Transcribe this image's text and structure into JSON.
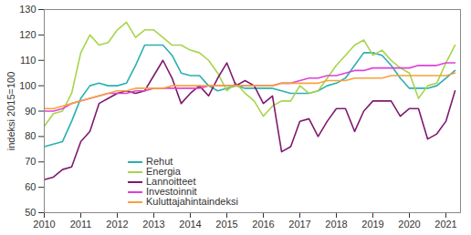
{
  "chart_data": {
    "type": "line",
    "y_label": "indeksi 2015=100",
    "x": [
      2010,
      2010.25,
      2010.5,
      2010.75,
      2011,
      2011.25,
      2011.5,
      2011.75,
      2012,
      2012.25,
      2012.5,
      2012.75,
      2013,
      2013.25,
      2013.5,
      2013.75,
      2014,
      2014.25,
      2014.5,
      2014.75,
      2015,
      2015.25,
      2015.5,
      2015.75,
      2016,
      2016.25,
      2016.5,
      2016.75,
      2017,
      2017.25,
      2017.5,
      2017.75,
      2018,
      2018.25,
      2018.5,
      2018.75,
      2019,
      2019.25,
      2019.5,
      2019.75,
      2020,
      2020.25,
      2020.5,
      2020.75,
      2021,
      2021.25
    ],
    "series": [
      {
        "name": "Rehut",
        "color": "#2ab0b0",
        "values": [
          76,
          77,
          78,
          86,
          95,
          100,
          101,
          100,
          100,
          101,
          108,
          116,
          116,
          116,
          112,
          105,
          104,
          104,
          100,
          98,
          99,
          100,
          99,
          99,
          99,
          99,
          98,
          97,
          97,
          97,
          98,
          100,
          101,
          103,
          108,
          113,
          113,
          112,
          108,
          103,
          99,
          99,
          99,
          100,
          103,
          106
        ]
      },
      {
        "name": "Energia",
        "color": "#a8d44c",
        "values": [
          84,
          89,
          90,
          97,
          113,
          120,
          116,
          117,
          122,
          125,
          119,
          122,
          122,
          119,
          116,
          116,
          114,
          113,
          110,
          105,
          98,
          101,
          97,
          94,
          88,
          92,
          94,
          94,
          100,
          97,
          98,
          103,
          108,
          112,
          116,
          118,
          112,
          114,
          110,
          107,
          105,
          95,
          100,
          101,
          109,
          116
        ]
      },
      {
        "name": "Lannoitteet",
        "color": "#7e1a6e",
        "values": [
          63,
          64,
          67,
          68,
          78,
          82,
          93,
          95,
          97,
          98,
          97,
          98,
          104,
          110,
          103,
          93,
          97,
          100,
          96,
          103,
          109,
          100,
          102,
          100,
          93,
          96,
          74,
          76,
          86,
          87,
          80,
          86,
          91,
          91,
          82,
          90,
          94,
          94,
          94,
          88,
          91,
          91,
          79,
          81,
          86,
          98
        ]
      },
      {
        "name": "Investoinnit",
        "color": "#e040d8",
        "values": [
          90,
          90,
          91,
          93,
          94,
          95,
          96,
          97,
          97,
          97,
          98,
          98,
          99,
          99,
          99,
          99,
          99,
          99,
          100,
          100,
          100,
          100,
          100,
          100,
          100,
          100,
          101,
          101,
          102,
          103,
          103,
          104,
          104,
          105,
          106,
          106,
          107,
          107,
          107,
          107,
          107,
          108,
          108,
          108,
          109,
          109
        ]
      },
      {
        "name": "Kuluttajahintaindeksi",
        "color": "#f5a33a",
        "values": [
          91,
          91,
          92,
          93,
          94,
          95,
          96,
          97,
          98,
          98,
          99,
          99,
          99,
          99,
          100,
          100,
          100,
          100,
          100,
          100,
          100,
          100,
          100,
          100,
          100,
          100,
          101,
          101,
          101,
          101,
          101,
          102,
          102,
          102,
          103,
          103,
          103,
          103,
          104,
          104,
          104,
          104,
          104,
          104,
          104,
          105
        ]
      }
    ],
    "xlim": [
      2010,
      2021.4
    ],
    "xticks": [
      2010,
      2011,
      2012,
      2013,
      2014,
      2015,
      2016,
      2017,
      2018,
      2019,
      2020,
      2021
    ],
    "ylim": [
      50,
      130
    ],
    "yticks": [
      50,
      60,
      70,
      80,
      90,
      100,
      110,
      120,
      130
    ],
    "grid": false,
    "legend": "left"
  }
}
